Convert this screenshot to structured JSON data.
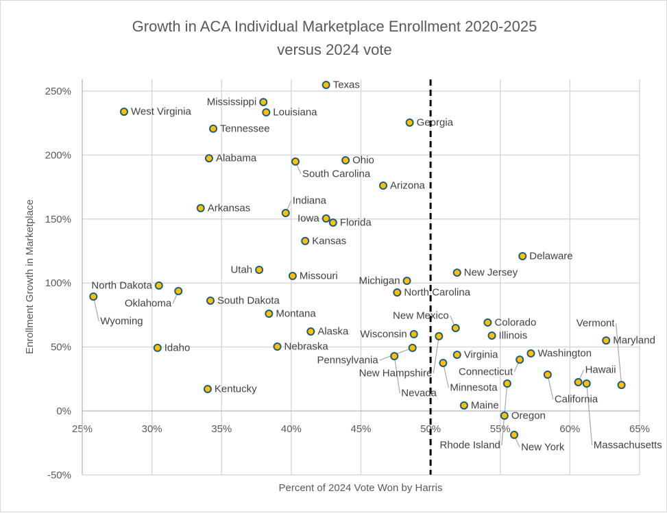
{
  "chart_data": {
    "type": "scatter",
    "title": [
      "Growth in ACA Individual Marketplace Enrollment 2020-2025",
      "versus 2024 vote"
    ],
    "xlabel": "Percent of 2024 Vote Won by Harris",
    "ylabel": "Enrollment Growth in Marketplace",
    "xlim": [
      25,
      65
    ],
    "ylim": [
      -50,
      260
    ],
    "x_ticks": [
      "25%",
      "30%",
      "35%",
      "40%",
      "45%",
      "50%",
      "55%",
      "60%",
      "65%"
    ],
    "x_tick_values": [
      25,
      30,
      35,
      40,
      45,
      50,
      55,
      60,
      65
    ],
    "y_ticks": [
      "-50%",
      "0%",
      "50%",
      "100%",
      "150%",
      "200%",
      "250%"
    ],
    "y_tick_values": [
      -50,
      0,
      50,
      100,
      150,
      200,
      250
    ],
    "grid": true,
    "reference_line": {
      "x": 50,
      "style": "dashed",
      "color": "#000000"
    },
    "marker_fill": "#FFC000",
    "marker_edge": "#1F5C82",
    "points": [
      {
        "label": "Texas",
        "x": 42.5,
        "y": 254.8
      },
      {
        "label": "Mississippi",
        "x": 38.0,
        "y": 241.4
      },
      {
        "label": "Louisiana",
        "x": 38.2,
        "y": 233.4
      },
      {
        "label": "West Virginia",
        "x": 28.0,
        "y": 233.9
      },
      {
        "label": "Tennessee",
        "x": 34.4,
        "y": 220.6
      },
      {
        "label": "Georgia",
        "x": 48.5,
        "y": 225.4
      },
      {
        "label": "Alabama",
        "x": 34.1,
        "y": 197.5
      },
      {
        "label": "South Carolina",
        "x": 40.3,
        "y": 194.9
      },
      {
        "label": "Ohio",
        "x": 43.9,
        "y": 195.9
      },
      {
        "label": "Arizona",
        "x": 46.6,
        "y": 176.1
      },
      {
        "label": "Arkansas",
        "x": 33.5,
        "y": 158.5
      },
      {
        "label": "Indiana",
        "x": 39.6,
        "y": 154.7
      },
      {
        "label": "Iowa",
        "x": 42.5,
        "y": 150.4
      },
      {
        "label": "Florida",
        "x": 43.0,
        "y": 147.2
      },
      {
        "label": "Kansas",
        "x": 41.0,
        "y": 132.8
      },
      {
        "label": "Delaware",
        "x": 56.6,
        "y": 121.0
      },
      {
        "label": "New Jersey",
        "x": 51.9,
        "y": 108.1
      },
      {
        "label": "Utah",
        "x": 37.7,
        "y": 110.3
      },
      {
        "label": "Missouri",
        "x": 40.1,
        "y": 105.5
      },
      {
        "label": "Michigan",
        "x": 48.3,
        "y": 101.7
      },
      {
        "label": "North Dakota",
        "x": 30.5,
        "y": 98.0
      },
      {
        "label": "Oklahoma",
        "x": 31.9,
        "y": 93.7
      },
      {
        "label": "North Carolina",
        "x": 47.6,
        "y": 92.6
      },
      {
        "label": "Wyoming",
        "x": 25.8,
        "y": 89.4
      },
      {
        "label": "South Dakota",
        "x": 34.2,
        "y": 86.2
      },
      {
        "label": "Montana",
        "x": 38.4,
        "y": 76.0
      },
      {
        "label": "Colorado",
        "x": 54.1,
        "y": 69.1
      },
      {
        "label": "New Mexico",
        "x": 51.8,
        "y": 64.8
      },
      {
        "label": "Alaska",
        "x": 41.4,
        "y": 62.1
      },
      {
        "label": "Wisconsin",
        "x": 48.8,
        "y": 60.0
      },
      {
        "label": "New Hampshire",
        "x": 50.6,
        "y": 58.4
      },
      {
        "label": "Illinois",
        "x": 54.4,
        "y": 58.9
      },
      {
        "label": "Maryland",
        "x": 62.6,
        "y": 55.1
      },
      {
        "label": "Idaho",
        "x": 30.4,
        "y": 49.3
      },
      {
        "label": "Nebraska",
        "x": 39.0,
        "y": 50.3
      },
      {
        "label": "Pennsylvania",
        "x": 48.7,
        "y": 49.3
      },
      {
        "label": "Washington",
        "x": 57.2,
        "y": 45.0
      },
      {
        "label": "Nevada",
        "x": 47.4,
        "y": 42.8
      },
      {
        "label": "Virginia",
        "x": 51.9,
        "y": 43.9
      },
      {
        "label": "Connecticut",
        "x": 56.4,
        "y": 40.1
      },
      {
        "label": "Minnesota",
        "x": 50.9,
        "y": 37.5
      },
      {
        "label": "California",
        "x": 58.4,
        "y": 28.4
      },
      {
        "label": "Rhode Island",
        "x": 55.5,
        "y": 21.4
      },
      {
        "label": "Hawaii",
        "x": 60.6,
        "y": 22.5
      },
      {
        "label": "Massachusetts",
        "x": 61.2,
        "y": 21.4
      },
      {
        "label": "Vermont",
        "x": 63.7,
        "y": 20.3
      },
      {
        "label": "Kentucky",
        "x": 34.0,
        "y": 17.1
      },
      {
        "label": "Maine",
        "x": 52.4,
        "y": 4.3
      },
      {
        "label": "Oregon",
        "x": 55.3,
        "y": -3.7
      },
      {
        "label": "New York",
        "x": 56.0,
        "y": -18.7
      }
    ]
  }
}
